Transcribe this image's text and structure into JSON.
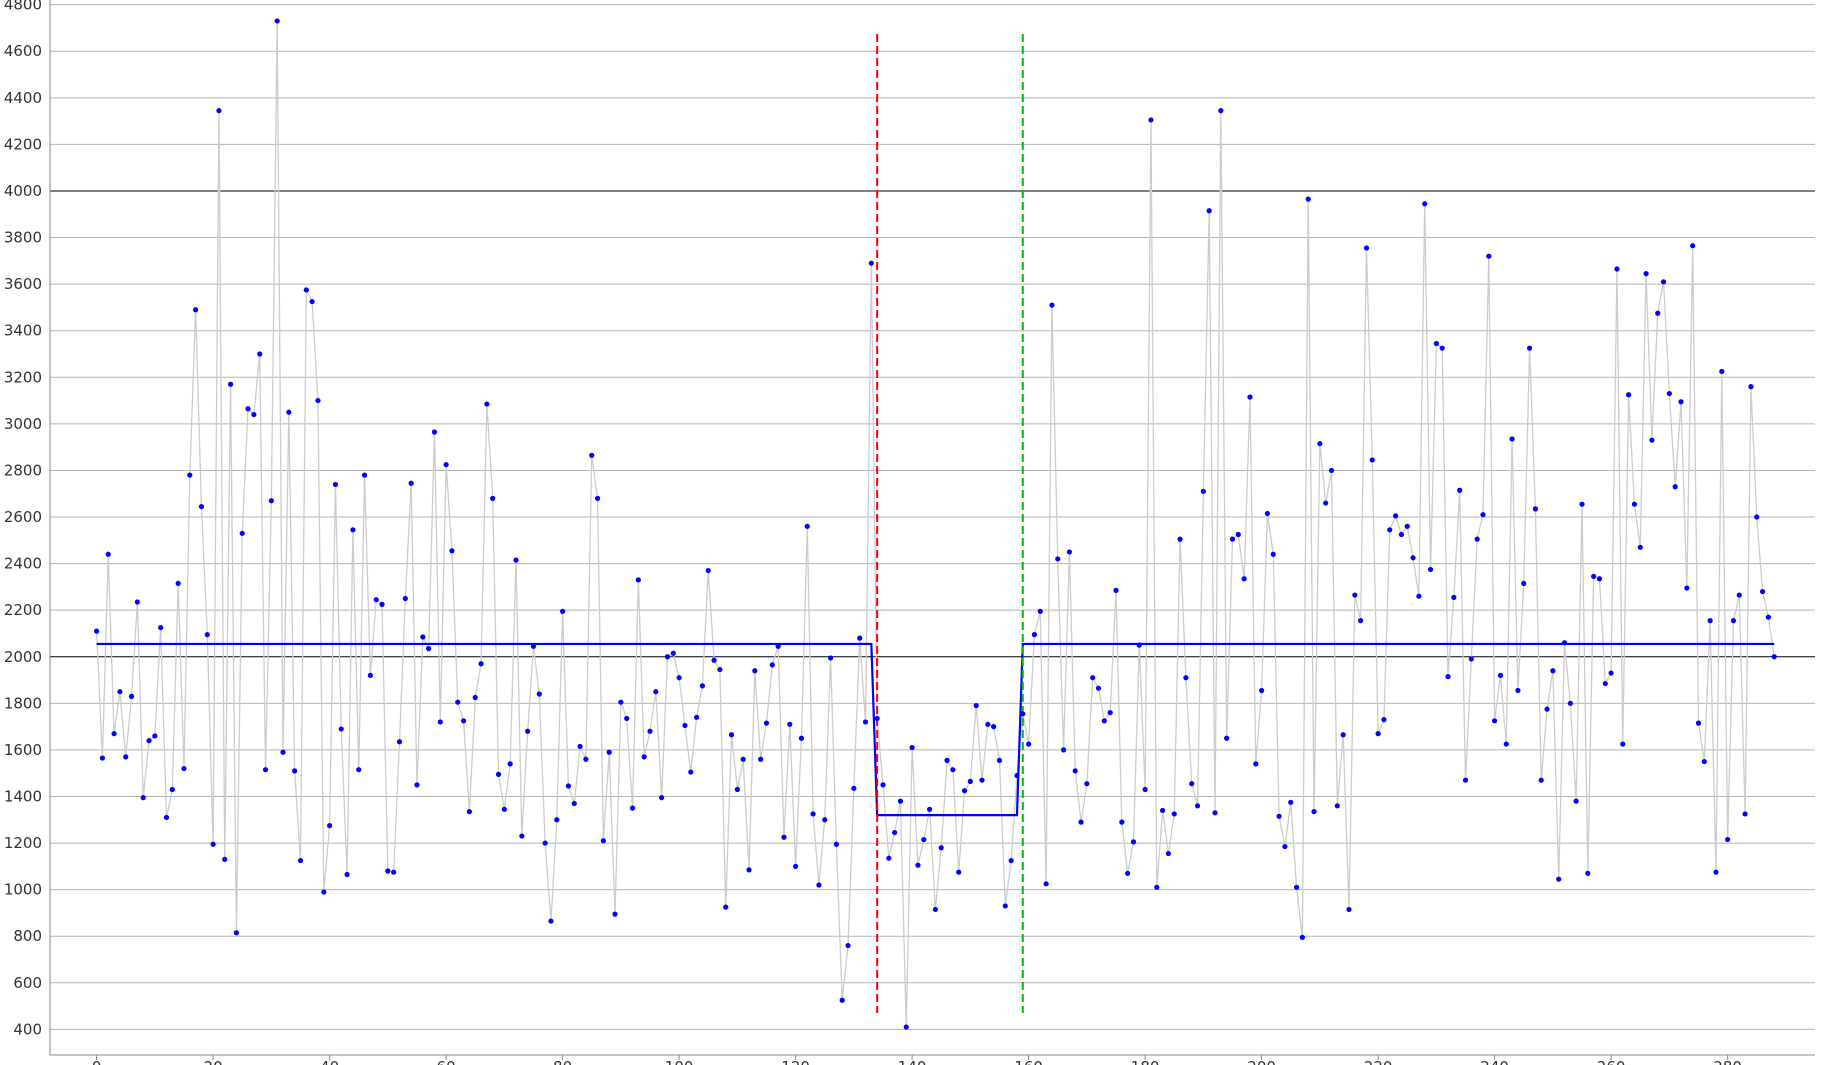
{
  "chart_data": {
    "type": "scatter",
    "title": "",
    "xlabel": "",
    "ylabel": "",
    "xlim": [
      -8,
      295
    ],
    "ylim": [
      290,
      4820
    ],
    "x_ticks": [
      0,
      20,
      40,
      60,
      80,
      100,
      120,
      140,
      160,
      180,
      200,
      220,
      240,
      260,
      280
    ],
    "y_ticks": [
      400,
      600,
      800,
      1000,
      1200,
      1400,
      1600,
      1800,
      2000,
      2200,
      2400,
      2600,
      2800,
      3000,
      3200,
      3400,
      3600,
      3800,
      4000,
      4200,
      4400,
      4600,
      4800
    ],
    "reference_lines_y": [
      2000,
      4000
    ],
    "grid": true,
    "legend": "none",
    "colors": {
      "points": "#0000ff",
      "connector": "#cccccc",
      "fit_line": "#0000ff",
      "vline_1": "#ff0000",
      "vline_2": "#00bb00",
      "grid": "#b5b5b5",
      "reference": "#000000"
    },
    "series": [
      {
        "values": [
          2110,
          1565,
          2440,
          1670,
          1850,
          1570,
          1830,
          2235,
          1395,
          1640,
          1660,
          2125,
          1310,
          1430,
          2315,
          1520,
          2780,
          3490,
          2645,
          2095,
          1195,
          4345,
          1130,
          3170,
          815,
          2530,
          3065,
          3040,
          3300,
          1515,
          2670,
          4730,
          1590,
          3050,
          1510,
          1125,
          3575,
          3525,
          3100,
          990,
          1275,
          2740,
          1690,
          1065,
          2545,
          1515,
          2780,
          1920,
          2245,
          2225,
          1080,
          1075,
          1635,
          2250,
          2745,
          1450,
          2085,
          2035,
          2965,
          1720,
          2825,
          2455,
          1805,
          1725,
          1335,
          1825,
          1970,
          3085,
          2680,
          1495,
          1345,
          1540,
          2415,
          1230,
          1680,
          2045,
          1840,
          1200,
          865,
          1300,
          2195,
          1445,
          1370,
          1615,
          1560,
          2865,
          2680,
          1210,
          1590,
          895,
          1805,
          1735,
          1350,
          2330,
          1570,
          1680,
          1850,
          1395,
          2000,
          2015,
          1910,
          1705,
          1505,
          1740,
          1875,
          2370,
          1985,
          1945,
          925,
          1665,
          1430,
          1560,
          1085,
          1940,
          1560,
          1715,
          1965,
          2045,
          1225,
          1710,
          1100,
          1650,
          2560,
          1325,
          1020,
          1300,
          1995,
          1195,
          525,
          760,
          1435,
          2080,
          1720,
          3690,
          1735,
          1450,
          1135,
          1245,
          1380,
          410,
          1610,
          1105,
          1215,
          1345,
          915,
          1180,
          1555,
          1515,
          1075,
          1425,
          1465,
          1790,
          1470,
          1710,
          1700,
          1555,
          930,
          1125,
          1490,
          1755,
          1625,
          2095,
          2195,
          1025,
          3510,
          2420,
          1600,
          2450,
          1510,
          1290,
          1455,
          1910,
          1865,
          1725,
          1760,
          2285,
          1290,
          1070,
          1205,
          2050,
          1430,
          4305,
          1010,
          1340,
          1155,
          1325,
          2505,
          1910,
          1455,
          1360,
          2710,
          3915,
          1330,
          4345,
          1650,
          2505,
          2525,
          2335,
          3115,
          1540,
          1855,
          2615,
          2440,
          1315,
          1185,
          1375,
          1010,
          795,
          3965,
          1335,
          2915,
          2660,
          2800,
          1360,
          1665,
          915,
          2265,
          2155,
          3755,
          2845,
          1670,
          1730,
          2545,
          2605,
          2525,
          2560,
          2425,
          2260,
          3945,
          2375,
          3345,
          3325,
          1915,
          2255,
          2715,
          1470,
          1990,
          2505,
          2610,
          3720,
          1725,
          1920,
          1625,
          2935,
          1855,
          2315,
          3325,
          2635,
          1470,
          1775,
          1940,
          1045,
          2060,
          1800,
          1380,
          2655,
          1070,
          2345,
          2335,
          1885,
          1930,
          3665,
          1625,
          3125,
          2655,
          2470,
          3645,
          2930,
          3475,
          3610,
          3130,
          2730,
          3095,
          2295,
          3765,
          1715,
          1550,
          2155,
          1075,
          3225,
          1215,
          2155,
          2265,
          1325,
          3160,
          2600,
          2280,
          2170,
          2000
        ]
      }
    ],
    "fit_segments": [
      {
        "x": [
          0,
          133
        ],
        "y": 2055
      },
      {
        "x": [
          134,
          158
        ],
        "y": 1320
      },
      {
        "x": [
          159,
          288
        ],
        "y": 2055
      }
    ],
    "vertical_markers": [
      {
        "x": 134,
        "color": "red",
        "style": "dashed"
      },
      {
        "x": 159,
        "color": "green",
        "style": "dashed"
      }
    ]
  }
}
